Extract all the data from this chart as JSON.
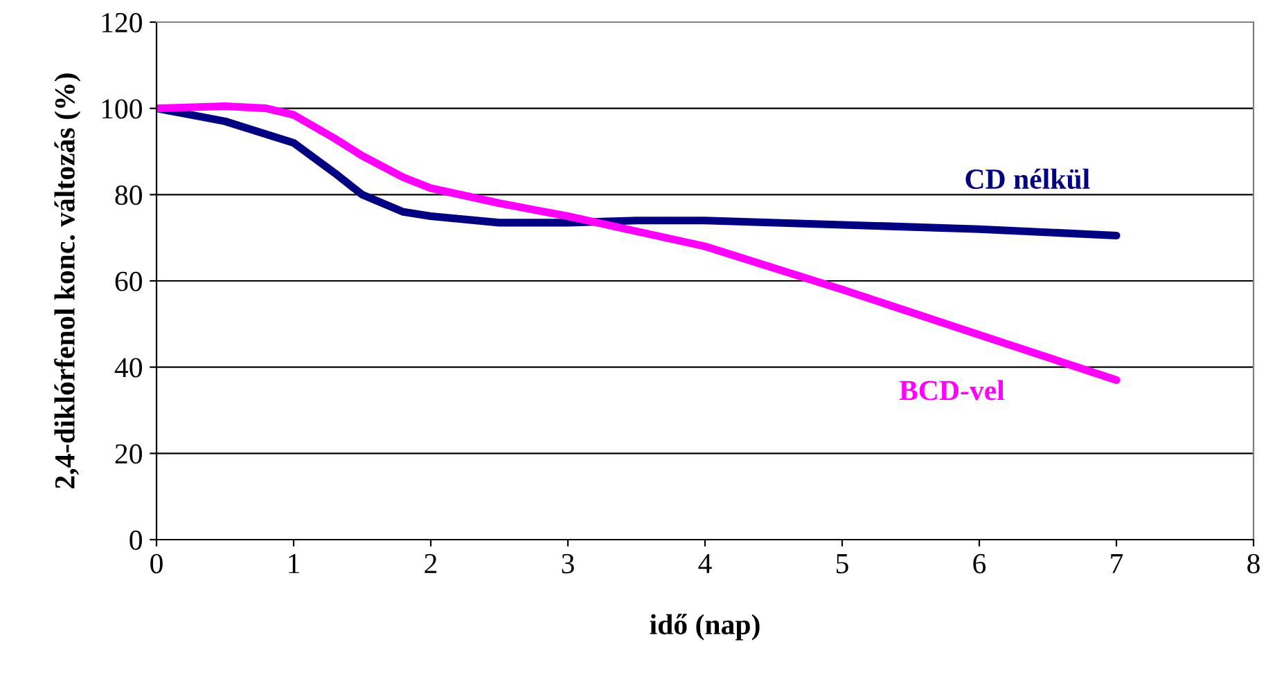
{
  "chart_data": {
    "type": "line",
    "xlabel": "idő (nap)",
    "ylabel": "2,4-diklórfenol konc. változás (%)",
    "xlim": [
      0,
      8
    ],
    "xticks": [
      0,
      1,
      2,
      3,
      4,
      5,
      6,
      7,
      8
    ],
    "ylim": [
      0,
      120
    ],
    "yticks": [
      0,
      20,
      40,
      60,
      80,
      100,
      120
    ],
    "grid": "y",
    "legend": false,
    "marker": "none",
    "line_style": "solid",
    "series": [
      {
        "name": "CD nélkül",
        "color": "#000080",
        "x": [
          0,
          0.5,
          1,
          1.3,
          1.5,
          1.8,
          2,
          2.5,
          3,
          3.5,
          4,
          5,
          6,
          7
        ],
        "values": [
          100,
          97,
          92,
          85,
          80,
          76,
          75,
          73.5,
          73.5,
          74,
          74,
          73,
          72,
          70.5
        ]
      },
      {
        "name": "BCD-vel",
        "color": "#ff00ff",
        "x": [
          0,
          0.5,
          0.8,
          1,
          1.3,
          1.5,
          1.8,
          2,
          2.5,
          3,
          3.5,
          4,
          5,
          6,
          7
        ],
        "values": [
          100,
          100.5,
          100,
          98.5,
          93,
          89,
          84,
          81.5,
          78,
          75,
          71.5,
          68,
          58,
          47.5,
          37
        ]
      }
    ]
  }
}
